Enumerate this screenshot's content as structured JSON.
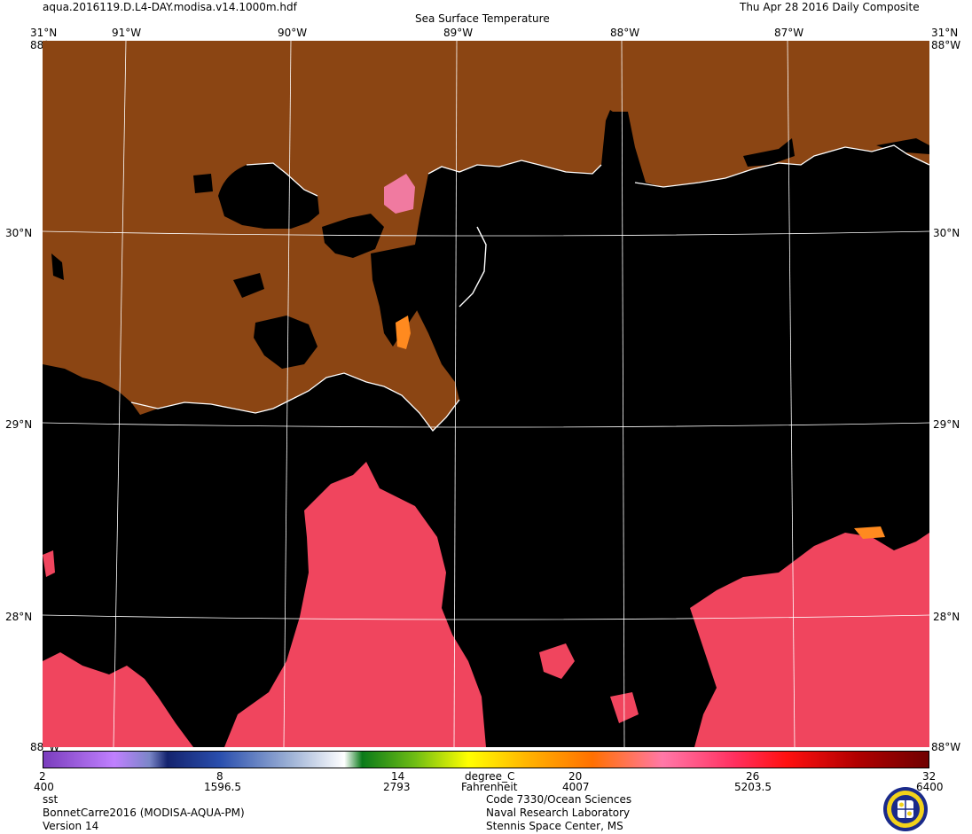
{
  "header": {
    "filename": "aqua.2016119.D.L4-DAY.modisa.v14.1000m.hdf",
    "title": "Sea Surface Temperature",
    "date": "Thu Apr 28 2016 Daily Composite"
  },
  "map": {
    "lon_labels": [
      "91°W",
      "90°W",
      "89°W",
      "88°W",
      "87°W"
    ],
    "lat_labels": [
      "30°N",
      "29°N",
      "28°N"
    ],
    "corner_top_lat": "31°N",
    "corner_edge": "88°W",
    "corner_bottom": "88°W",
    "colors": {
      "land": "#8B4513",
      "ocean_nodata": "#000000",
      "warm_sst": "#F0455E",
      "coast": "#FFFFFF"
    }
  },
  "colorbar": {
    "celsius_ticks": [
      "2",
      "8",
      "14",
      "20",
      "26",
      "32"
    ],
    "fahrenheit_ticks": [
      "400",
      "1596.5",
      "2793",
      "4007",
      "5203.5",
      "6400"
    ],
    "unit_c": "degree_C",
    "unit_f": "Fahrenheit"
  },
  "footer": {
    "left": [
      "sst",
      "BonnetCarre2016 (MODISA-AQUA-PM)",
      "Version 14"
    ],
    "right": [
      "Code 7330/Ocean Sciences",
      "Naval Research Laboratory",
      "Stennis Space Center, MS"
    ],
    "logo_icon": "nrl-seal-icon"
  }
}
